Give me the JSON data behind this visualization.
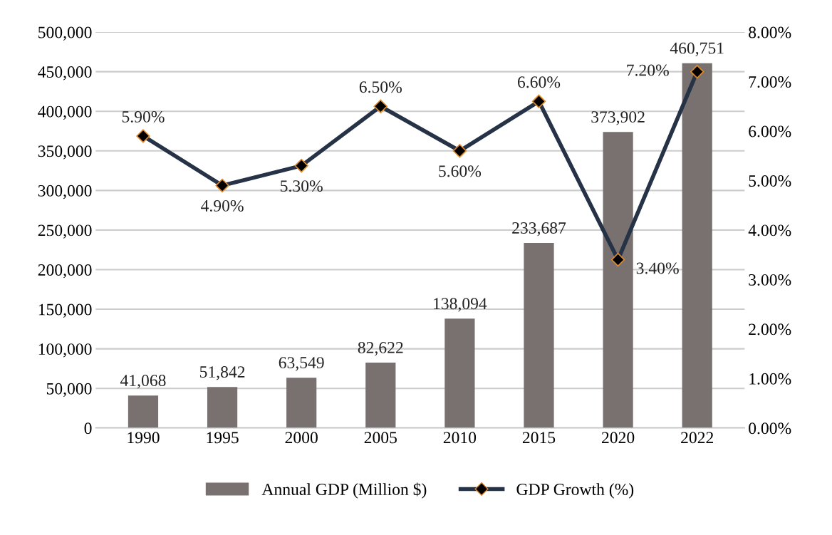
{
  "chart_data": {
    "type": "bar",
    "categories": [
      "1990",
      "1995",
      "2000",
      "2005",
      "2010",
      "2015",
      "2020",
      "2022"
    ],
    "series": [
      {
        "name": "Annual GDP (Million $)",
        "color": "#797170",
        "values": [
          41068,
          51842,
          63549,
          82622,
          138094,
          233687,
          373902,
          460751
        ],
        "value_labels": [
          "41,068",
          "51,842",
          "63,549",
          "82,622",
          "138,094",
          "233,687",
          "373,902",
          "460,751"
        ]
      },
      {
        "name": "GDP Growth (%)",
        "type": "line",
        "axis": "y2",
        "color": "#263246",
        "values": [
          5.9,
          4.9,
          5.3,
          6.5,
          5.6,
          6.6,
          3.4,
          7.2
        ],
        "value_labels": [
          "5.90%",
          "4.90%",
          "5.30%",
          "6.50%",
          "5.60%",
          "6.60%",
          "3.40%",
          "7.20%"
        ]
      }
    ],
    "ylim": [
      0,
      500000
    ],
    "yticks": [
      {
        "value": 0,
        "label": "0"
      },
      {
        "value": 50000,
        "label": "50,000"
      },
      {
        "value": 100000,
        "label": "100,000"
      },
      {
        "value": 150000,
        "label": "150,000"
      },
      {
        "value": 200000,
        "label": "200,000"
      },
      {
        "value": 250000,
        "label": "250,000"
      },
      {
        "value": 300000,
        "label": "300,000"
      },
      {
        "value": 350000,
        "label": "350,000"
      },
      {
        "value": 400000,
        "label": "400,000"
      },
      {
        "value": 450000,
        "label": "450,000"
      },
      {
        "value": 500000,
        "label": "500,000"
      }
    ],
    "y2lim": [
      0,
      8
    ],
    "y2ticks": [
      {
        "value": 0,
        "label": "0.00%"
      },
      {
        "value": 1,
        "label": "1.00%"
      },
      {
        "value": 2,
        "label": "2.00%"
      },
      {
        "value": 3,
        "label": "3.00%"
      },
      {
        "value": 4,
        "label": "4.00%"
      },
      {
        "value": 5,
        "label": "5.00%"
      },
      {
        "value": 6,
        "label": "6.00%"
      },
      {
        "value": 7,
        "label": "7.00%"
      },
      {
        "value": 8,
        "label": "8.00%"
      }
    ],
    "grid": "y",
    "legend": "bottom",
    "marker": "diamond",
    "line_style": "solid"
  }
}
